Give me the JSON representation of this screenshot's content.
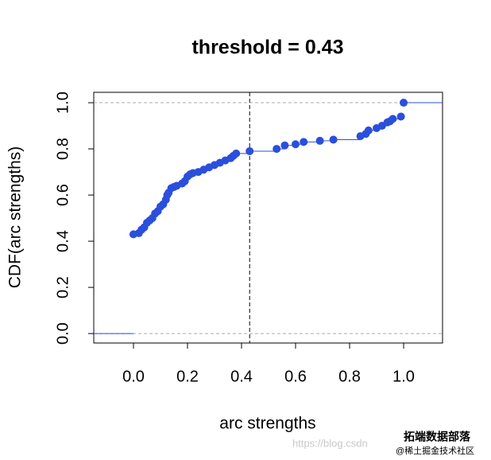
{
  "chart_data": {
    "type": "ecdf",
    "title": "threshold =  0.43",
    "threshold": 0.43,
    "x_label": "arc strengths",
    "y_label": "CDF(arc strengths)",
    "color": "#2a4fdc",
    "xlim": [
      -0.147,
      1.144
    ],
    "ylim": [
      -0.041,
      1.045
    ],
    "xticks": [
      {
        "value": 0,
        "label": "0.0"
      },
      0.2,
      0.4,
      0.6,
      0.8,
      {
        "value": 1,
        "label": "1.0"
      }
    ],
    "yticks": [
      {
        "value": 0,
        "label": "0.0"
      },
      0.2,
      0.4,
      0.6,
      0.8,
      {
        "value": 1,
        "label": "1.0"
      }
    ],
    "x": [
      0.0,
      0.02,
      0.03,
      0.04,
      0.05,
      0.06,
      0.07,
      0.08,
      0.09,
      0.1,
      0.11,
      0.12,
      0.125,
      0.13,
      0.14,
      0.15,
      0.16,
      0.18,
      0.19,
      0.2,
      0.21,
      0.22,
      0.24,
      0.26,
      0.28,
      0.3,
      0.32,
      0.34,
      0.36,
      0.37,
      0.38,
      0.43,
      0.53,
      0.56,
      0.6,
      0.63,
      0.69,
      0.74,
      0.84,
      0.86,
      0.87,
      0.9,
      0.92,
      0.94,
      0.95,
      0.96,
      0.99,
      1.0
    ],
    "values": [
      0.43,
      0.435,
      0.45,
      0.46,
      0.48,
      0.49,
      0.5,
      0.52,
      0.53,
      0.55,
      0.56,
      0.58,
      0.6,
      0.61,
      0.63,
      0.635,
      0.64,
      0.65,
      0.66,
      0.68,
      0.69,
      0.695,
      0.7,
      0.71,
      0.72,
      0.73,
      0.74,
      0.75,
      0.76,
      0.77,
      0.78,
      0.79,
      0.8,
      0.815,
      0.82,
      0.83,
      0.835,
      0.84,
      0.855,
      0.865,
      0.88,
      0.89,
      0.9,
      0.915,
      0.92,
      0.93,
      0.94,
      1.0
    ]
  },
  "watermark": {
    "url": "https://blog.csdn",
    "brand": "拓端数据部落",
    "site": "@稀土掘金技术社区"
  }
}
